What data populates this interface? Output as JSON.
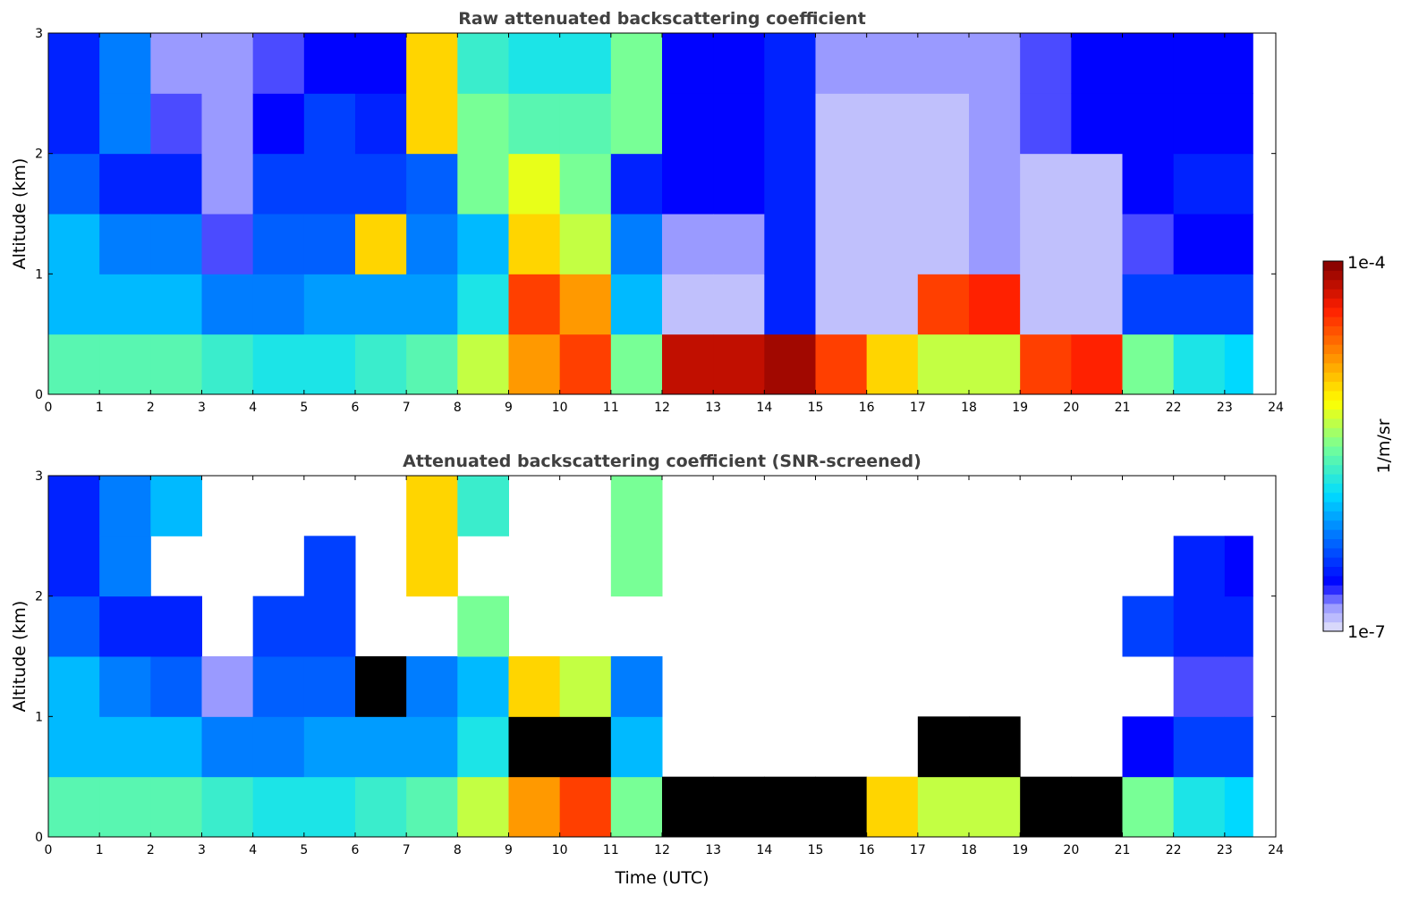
{
  "chart_data": [
    {
      "type": "heatmap",
      "title": "Raw attenuated backscattering coefficient",
      "xlabel": "",
      "ylabel": "Altitude (km)",
      "xlim": [
        0,
        24
      ],
      "ylim": [
        0,
        3
      ],
      "x_ticks": [
        "0",
        "1",
        "2",
        "3",
        "4",
        "5",
        "6",
        "7",
        "8",
        "9",
        "10",
        "11",
        "12",
        "13",
        "14",
        "15",
        "16",
        "17",
        "18",
        "19",
        "20",
        "21",
        "22",
        "23",
        "24"
      ],
      "y_ticks": [
        "0",
        "1",
        "2",
        "3"
      ],
      "time_bin_hours": 1,
      "altitude_bins_km": [
        0,
        0.5,
        1,
        1.5,
        2,
        2.5,
        3
      ],
      "data_end_hour": 23.55,
      "values_log10": [
        [
          -5.6,
          -6.0,
          -6.0,
          -6.3,
          -6.5,
          -6.5
        ],
        [
          -5.6,
          -6.0,
          -6.2,
          -6.5,
          -6.2,
          -6.2
        ],
        [
          -5.6,
          -6.0,
          -6.2,
          -6.5,
          -6.7,
          -6.8
        ],
        [
          -5.7,
          -6.2,
          -6.7,
          -6.8,
          -6.8,
          -6.8
        ],
        [
          -5.8,
          -6.2,
          -6.3,
          -6.4,
          -6.6,
          -6.7
        ],
        [
          -5.8,
          -6.1,
          -6.3,
          -6.4,
          -6.4,
          -6.6
        ],
        [
          -5.7,
          -6.1,
          -5.0,
          -6.4,
          -6.5,
          -6.6
        ],
        [
          -5.6,
          -6.1,
          -6.2,
          -6.3,
          -5.0,
          -5.0
        ],
        [
          -5.3,
          -5.8,
          -6.0,
          -5.5,
          -5.5,
          -5.7
        ],
        [
          -4.8,
          -4.5,
          -5.0,
          -5.2,
          -5.6,
          -5.8
        ],
        [
          -4.5,
          -4.8,
          -5.3,
          -5.5,
          -5.6,
          -5.8
        ],
        [
          -5.5,
          -6.0,
          -6.2,
          -6.5,
          -5.5,
          -5.5
        ],
        [
          -4.2,
          -6.9,
          -6.8,
          -6.6,
          -6.6,
          -6.6
        ],
        [
          -4.2,
          -6.9,
          -6.8,
          -6.6,
          -6.6,
          -6.6
        ],
        [
          -4.1,
          -6.5,
          -6.5,
          -6.5,
          -6.5,
          -6.5
        ],
        [
          -4.5,
          -6.9,
          -6.9,
          -6.9,
          -6.9,
          -6.8
        ],
        [
          -5.0,
          -6.9,
          -6.9,
          -6.9,
          -6.9,
          -6.8
        ],
        [
          -5.3,
          -4.5,
          -6.9,
          -6.9,
          -6.9,
          -6.8
        ],
        [
          -5.3,
          -4.4,
          -6.8,
          -6.8,
          -6.8,
          -6.8
        ],
        [
          -4.5,
          -6.9,
          -6.9,
          -6.9,
          -6.7,
          -6.7
        ],
        [
          -4.4,
          -6.9,
          -6.9,
          -6.9,
          -6.6,
          -6.6
        ],
        [
          -5.5,
          -6.4,
          -6.7,
          -6.6,
          -6.6,
          -6.6
        ],
        [
          -5.8,
          -6.4,
          -6.6,
          -6.5,
          -6.6,
          -6.6
        ],
        [
          -5.9,
          -6.4,
          -6.6,
          -6.5,
          -6.6,
          -6.6
        ]
      ]
    },
    {
      "type": "heatmap",
      "title": "Attenuated backscattering coefficient (SNR-screened)",
      "xlabel": "Time (UTC)",
      "ylabel": "Altitude (km)",
      "xlim": [
        0,
        24
      ],
      "ylim": [
        0,
        3
      ],
      "x_ticks": [
        "0",
        "1",
        "2",
        "3",
        "4",
        "5",
        "6",
        "7",
        "8",
        "9",
        "10",
        "11",
        "12",
        "13",
        "14",
        "15",
        "16",
        "17",
        "18",
        "19",
        "20",
        "21",
        "22",
        "23",
        "24"
      ],
      "y_ticks": [
        "0",
        "1",
        "2",
        "3"
      ],
      "time_bin_hours": 1,
      "altitude_bins_km": [
        0,
        0.5,
        1,
        1.5,
        2,
        2.5,
        3
      ],
      "data_end_hour": 23.55,
      "values_log10": [
        [
          -5.6,
          -6.0,
          -6.0,
          -6.3,
          -6.5,
          -6.5
        ],
        [
          -5.6,
          -6.0,
          -6.2,
          -6.5,
          -6.2,
          -6.2
        ],
        [
          -5.6,
          -6.0,
          -6.3,
          -6.5,
          null,
          -6.0
        ],
        [
          -5.7,
          -6.2,
          -6.8,
          null,
          null,
          null
        ],
        [
          -5.8,
          -6.2,
          -6.3,
          -6.4,
          null,
          null
        ],
        [
          -5.8,
          -6.1,
          -6.3,
          -6.4,
          -6.4,
          null
        ],
        [
          -5.7,
          -6.1,
          -3.9,
          null,
          null,
          null
        ],
        [
          -5.6,
          -6.1,
          -6.2,
          null,
          -5.0,
          -5.0
        ],
        [
          -5.3,
          -5.8,
          -6.0,
          -5.5,
          null,
          -5.7
        ],
        [
          -4.8,
          -3.9,
          -5.0,
          null,
          null,
          null
        ],
        [
          -4.5,
          -3.9,
          -5.3,
          null,
          null,
          null
        ],
        [
          -5.5,
          -6.0,
          -6.2,
          null,
          -5.5,
          -5.5
        ],
        [
          -3.9,
          null,
          null,
          null,
          null,
          null
        ],
        [
          -3.9,
          null,
          null,
          null,
          null,
          null
        ],
        [
          -3.9,
          null,
          null,
          null,
          null,
          null
        ],
        [
          -3.9,
          null,
          null,
          null,
          null,
          null
        ],
        [
          -5.0,
          null,
          null,
          null,
          null,
          null
        ],
        [
          -5.3,
          -3.9,
          null,
          null,
          null,
          null
        ],
        [
          -5.3,
          -3.9,
          null,
          null,
          null,
          null
        ],
        [
          -3.9,
          null,
          null,
          null,
          null,
          null
        ],
        [
          -3.9,
          null,
          null,
          null,
          null,
          null
        ],
        [
          -5.5,
          -6.6,
          null,
          -6.4,
          null,
          null
        ],
        [
          -5.8,
          -6.4,
          -6.7,
          -6.5,
          -6.5,
          null
        ],
        [
          -5.9,
          -6.4,
          -6.7,
          -6.5,
          -6.6,
          null
        ]
      ]
    }
  ],
  "colorbar": {
    "label": "1/m/sr",
    "max_label": "1e-4",
    "min_label": "1e-7",
    "range_log10": [
      -7,
      -4
    ]
  }
}
